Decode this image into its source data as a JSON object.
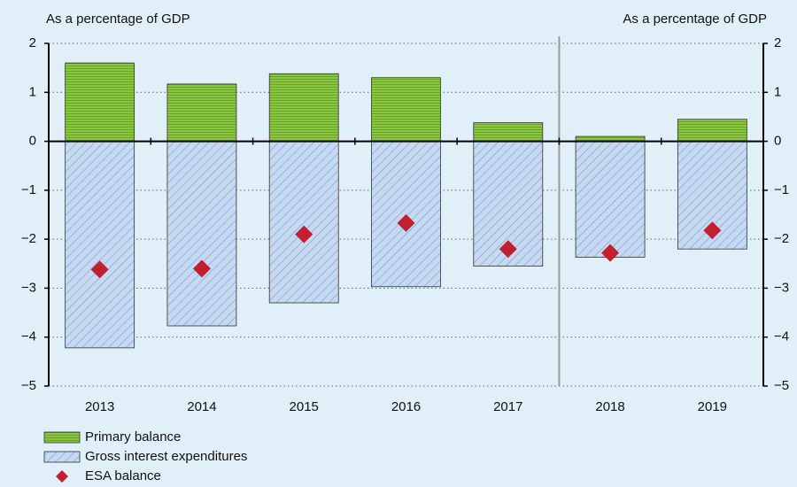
{
  "chart_data": {
    "type": "bar",
    "y_label": "As a percentage of GDP",
    "y2_label": "As a percentage of GDP",
    "categories": [
      "2013",
      "2014",
      "2015",
      "2016",
      "2017",
      "2018",
      "2019"
    ],
    "series": [
      {
        "name": "Primary balance",
        "type": "bar",
        "color": "#8cc63e",
        "hatch": "horizontal",
        "values": [
          1.6,
          1.17,
          1.38,
          1.3,
          0.38,
          0.1,
          0.45
        ]
      },
      {
        "name": "Gross interest expenditures",
        "type": "bar",
        "color": "#c6d9f0",
        "hatch": "diagonal",
        "values": [
          -4.22,
          -3.77,
          -3.3,
          -2.97,
          -2.55,
          -2.37,
          -2.2
        ]
      },
      {
        "name": "ESA balance",
        "type": "scatter",
        "color": "#c0202f",
        "values": [
          -2.62,
          -2.6,
          -1.9,
          -1.67,
          -2.2,
          -2.28,
          -1.82
        ]
      }
    ],
    "ylim": [
      -5,
      2
    ],
    "yticks": [
      {
        "value": -5,
        "label": "−5"
      },
      {
        "value": -4,
        "label": "−4"
      },
      {
        "value": -3,
        "label": "−3"
      },
      {
        "value": -2,
        "label": "−2"
      },
      {
        "value": -1,
        "label": "−1"
      },
      0,
      1,
      2
    ],
    "y2lim": [
      -5,
      2
    ],
    "y2ticks": [
      {
        "value": -5,
        "label": "−5"
      },
      {
        "value": -4,
        "label": "−4"
      },
      {
        "value": -3,
        "label": "−3"
      },
      {
        "value": -2,
        "label": "−2"
      },
      {
        "value": -1,
        "label": "−1"
      },
      0,
      1,
      2
    ],
    "grid": true
  }
}
